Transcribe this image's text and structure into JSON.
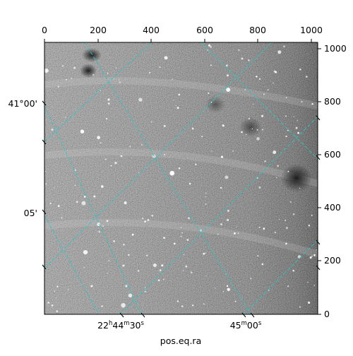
{
  "figure": {
    "axis_label_bottom": "pos.eq.ra",
    "grid_color": "#27c8c8",
    "image_description_colors": {
      "background": "#6e6e6e",
      "stars": "#ffffff"
    }
  },
  "pixel_axes": {
    "top_ticks": [
      "0",
      "200",
      "400",
      "600",
      "800",
      "1000"
    ],
    "right_ticks": [
      "0",
      "200",
      "400",
      "600",
      "800",
      "1000"
    ]
  },
  "world_axes": {
    "left_ticks": [
      "41°00'",
      "05'"
    ],
    "bottom_ticks": [
      {
        "h": "22",
        "m": "44",
        "s": "30"
      },
      {
        "m": "45",
        "s": "00"
      }
    ]
  }
}
